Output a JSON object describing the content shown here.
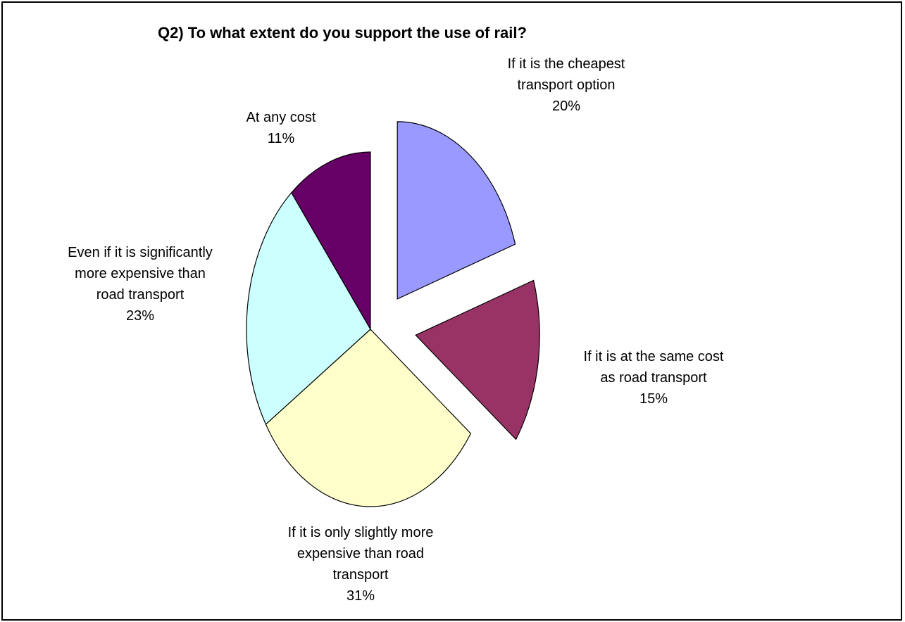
{
  "chart_data": {
    "type": "pie",
    "title": "Q2) To what extent do you support the use of rail?",
    "slices": [
      {
        "label_lines": [
          "If it is the cheapest",
          "transport option"
        ],
        "label": "If it is the cheapest transport option",
        "percent_text": "20%",
        "value": 20,
        "color": "#9999ff",
        "exploded": true
      },
      {
        "label_lines": [
          "If it is at the same cost",
          "as road transport"
        ],
        "label": "If it is at the same cost as road transport",
        "percent_text": "15%",
        "value": 15,
        "color": "#993366",
        "exploded": true
      },
      {
        "label_lines": [
          "If it is only slightly more",
          "expensive than road",
          "transport"
        ],
        "label": "If it is only slightly more expensive than road transport",
        "percent_text": "31%",
        "value": 31,
        "color": "#ffffcc",
        "exploded": false
      },
      {
        "label_lines": [
          "Even if it is significantly",
          "more expensive than",
          "road transport"
        ],
        "label": "Even if it is significantly more expensive than road transport",
        "percent_text": "23%",
        "value": 23,
        "color": "#ccffff",
        "exploded": false
      },
      {
        "label_lines": [
          "At any cost"
        ],
        "label": "At any cost",
        "percent_text": "11%",
        "value": 11,
        "color": "#660066",
        "exploded": false
      }
    ],
    "legend": "none"
  }
}
